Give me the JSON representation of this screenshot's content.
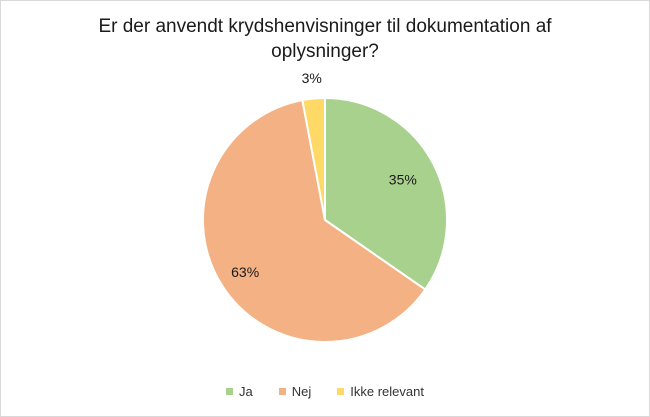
{
  "chart_data": {
    "type": "pie",
    "title": "Er der anvendt krydshenvisninger til dokumentation af oplysninger?",
    "categories": [
      "Ja",
      "Nej",
      "Ikke relevant"
    ],
    "values": [
      35,
      63,
      3
    ],
    "labels": [
      "35%",
      "63%",
      "3%"
    ],
    "colors": [
      "#a9d18e",
      "#f4b183",
      "#ffd966"
    ],
    "legend_position": "bottom"
  }
}
